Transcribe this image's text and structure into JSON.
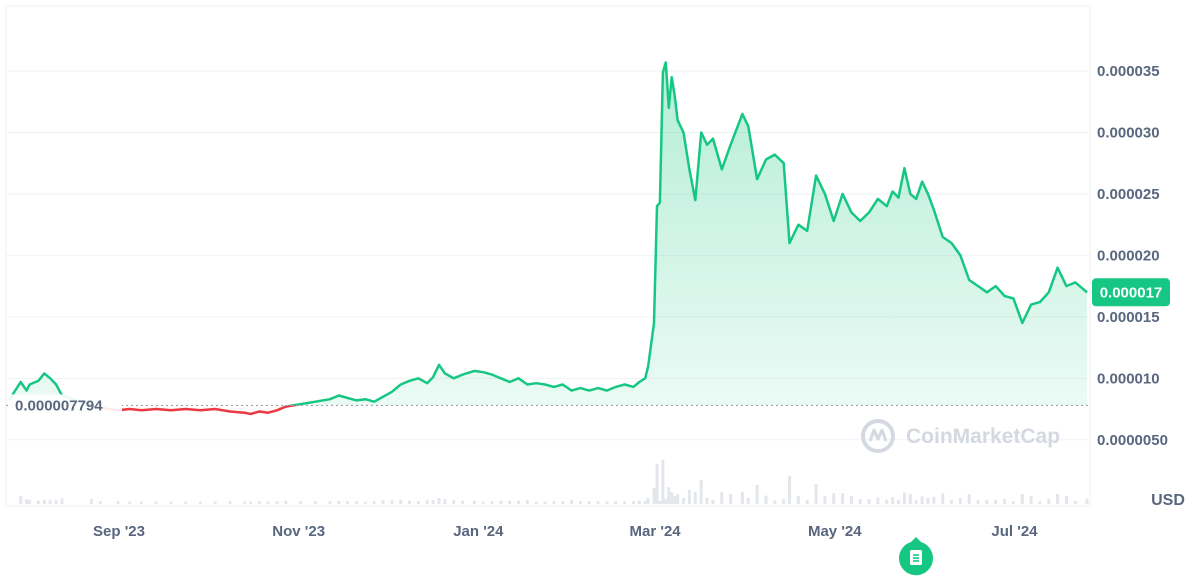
{
  "chart_data": {
    "type": "line",
    "x_ticks": [
      "Sep '23",
      "Nov '23",
      "Jan '24",
      "Mar '24",
      "May '24",
      "Jul '24"
    ],
    "y_ticks": [
      "0.0000050",
      "0.000010",
      "0.000015",
      "0.000020",
      "0.000025",
      "0.000030",
      "0.000035"
    ],
    "y_tick_values": [
      5e-06,
      1e-05,
      1.5e-05,
      2e-05,
      2.5e-05,
      3e-05,
      3.5e-05
    ],
    "ylim": [
      1e-07,
      3.85e-05
    ],
    "unit": "USD",
    "reference": {
      "label": "0.000007794",
      "value": 7.794e-06
    },
    "current": {
      "label": "0.000017",
      "value": 1.7e-05
    },
    "watermark": "CoinMarketCap",
    "series": [
      {
        "x": [
          "2023-07-27",
          "2023-07-31",
          "2023-08-02",
          "2023-08-03",
          "2023-08-06",
          "2023-08-08",
          "2023-08-10",
          "2023-08-12",
          "2023-08-14",
          "2023-08-24",
          "2023-08-27",
          "2023-09-02",
          "2023-09-06",
          "2023-09-10",
          "2023-09-15",
          "2023-09-20",
          "2023-09-25",
          "2023-09-30",
          "2023-10-05",
          "2023-10-10",
          "2023-10-15",
          "2023-10-17",
          "2023-10-20",
          "2023-10-23",
          "2023-10-26",
          "2023-10-29",
          "2023-11-03",
          "2023-11-08",
          "2023-11-13",
          "2023-11-16",
          "2023-11-19",
          "2023-11-22",
          "2023-11-25",
          "2023-11-28",
          "2023-12-01",
          "2023-12-04",
          "2023-12-07",
          "2023-12-10",
          "2023-12-13",
          "2023-12-16",
          "2023-12-18",
          "2023-12-20",
          "2023-12-22",
          "2023-12-25",
          "2023-12-28",
          "2024-01-01",
          "2024-01-04",
          "2024-01-07",
          "2024-01-10",
          "2024-01-13",
          "2024-01-16",
          "2024-01-19",
          "2024-01-22",
          "2024-01-25",
          "2024-01-28",
          "2024-01-31",
          "2024-02-03",
          "2024-02-06",
          "2024-02-09",
          "2024-02-12",
          "2024-02-15",
          "2024-02-18",
          "2024-02-21",
          "2024-02-24",
          "2024-02-26",
          "2024-02-28",
          "2024-02-29",
          "2024-03-02",
          "2024-03-03",
          "2024-03-04",
          "2024-03-05",
          "2024-03-06",
          "2024-03-07",
          "2024-03-08",
          "2024-03-09",
          "2024-03-10",
          "2024-03-12",
          "2024-03-14",
          "2024-03-16",
          "2024-03-18",
          "2024-03-20",
          "2024-03-22",
          "2024-03-25",
          "2024-03-28",
          "2024-04-01",
          "2024-04-03",
          "2024-04-06",
          "2024-04-09",
          "2024-04-12",
          "2024-04-15",
          "2024-04-17",
          "2024-04-20",
          "2024-04-23",
          "2024-04-26",
          "2024-04-29",
          "2024-05-02",
          "2024-05-05",
          "2024-05-08",
          "2024-05-11",
          "2024-05-14",
          "2024-05-17",
          "2024-05-20",
          "2024-05-22",
          "2024-05-24",
          "2024-05-26",
          "2024-05-28",
          "2024-05-30",
          "2024-06-01",
          "2024-06-03",
          "2024-06-05",
          "2024-06-08",
          "2024-06-11",
          "2024-06-14",
          "2024-06-17",
          "2024-06-20",
          "2024-06-23",
          "2024-06-26",
          "2024-06-29",
          "2024-07-02",
          "2024-07-05",
          "2024-07-08",
          "2024-07-11",
          "2024-07-14",
          "2024-07-17",
          "2024-07-20",
          "2024-07-23",
          "2024-07-27"
        ],
        "y": [
          8.2e-06,
          9.7e-06,
          9e-06,
          9.5e-06,
          9.8e-06,
          1.04e-05,
          1e-05,
          9.5e-06,
          8.6e-06,
          7.8e-06,
          7.6e-06,
          7.4e-06,
          7.5e-06,
          7.4e-06,
          7.5e-06,
          7.4e-06,
          7.5e-06,
          7.4e-06,
          7.5e-06,
          7.3e-06,
          7.2e-06,
          7.1e-06,
          7.3e-06,
          7.2e-06,
          7.4e-06,
          7.7e-06,
          7.9e-06,
          8.1e-06,
          8.3e-06,
          8.6e-06,
          8.4e-06,
          8.2e-06,
          8.3e-06,
          8.1e-06,
          8.5e-06,
          8.9e-06,
          9.5e-06,
          9.8e-06,
          1e-05,
          9.6e-06,
          1.01e-05,
          1.11e-05,
          1.04e-05,
          1e-05,
          1.03e-05,
          1.06e-05,
          1.05e-05,
          1.03e-05,
          1e-05,
          9.7e-06,
          1e-05,
          9.5e-06,
          9.6e-06,
          9.5e-06,
          9.3e-06,
          9.5e-06,
          9e-06,
          9.2e-06,
          9e-06,
          9.2e-06,
          9e-06,
          9.3e-06,
          9.5e-06,
          9.3e-06,
          9.7e-06,
          1e-05,
          1.1e-05,
          1.45e-05,
          2.4e-05,
          2.43e-05,
          3.49e-05,
          3.57e-05,
          3.2e-05,
          3.45e-05,
          3.3e-05,
          3.1e-05,
          3e-05,
          2.7e-05,
          2.45e-05,
          3e-05,
          2.9e-05,
          2.95e-05,
          2.7e-05,
          2.9e-05,
          3.15e-05,
          3.05e-05,
          2.62e-05,
          2.78e-05,
          2.82e-05,
          2.75e-05,
          2.1e-05,
          2.25e-05,
          2.2e-05,
          2.65e-05,
          2.5e-05,
          2.28e-05,
          2.5e-05,
          2.35e-05,
          2.28e-05,
          2.35e-05,
          2.46e-05,
          2.4e-05,
          2.52e-05,
          2.47e-05,
          2.71e-05,
          2.5e-05,
          2.46e-05,
          2.6e-05,
          2.5e-05,
          2.37e-05,
          2.15e-05,
          2.1e-05,
          2e-05,
          1.8e-05,
          1.75e-05,
          1.7e-05,
          1.75e-05,
          1.67e-05,
          1.65e-05,
          1.45e-05,
          1.6e-05,
          1.62e-05,
          1.7e-05,
          1.9e-05,
          1.75e-05,
          1.78e-05,
          1.7e-05
        ]
      }
    ],
    "line_color_up": "#16c784",
    "line_color_down": "#ea3943",
    "grid": true,
    "volume_bars": true
  }
}
